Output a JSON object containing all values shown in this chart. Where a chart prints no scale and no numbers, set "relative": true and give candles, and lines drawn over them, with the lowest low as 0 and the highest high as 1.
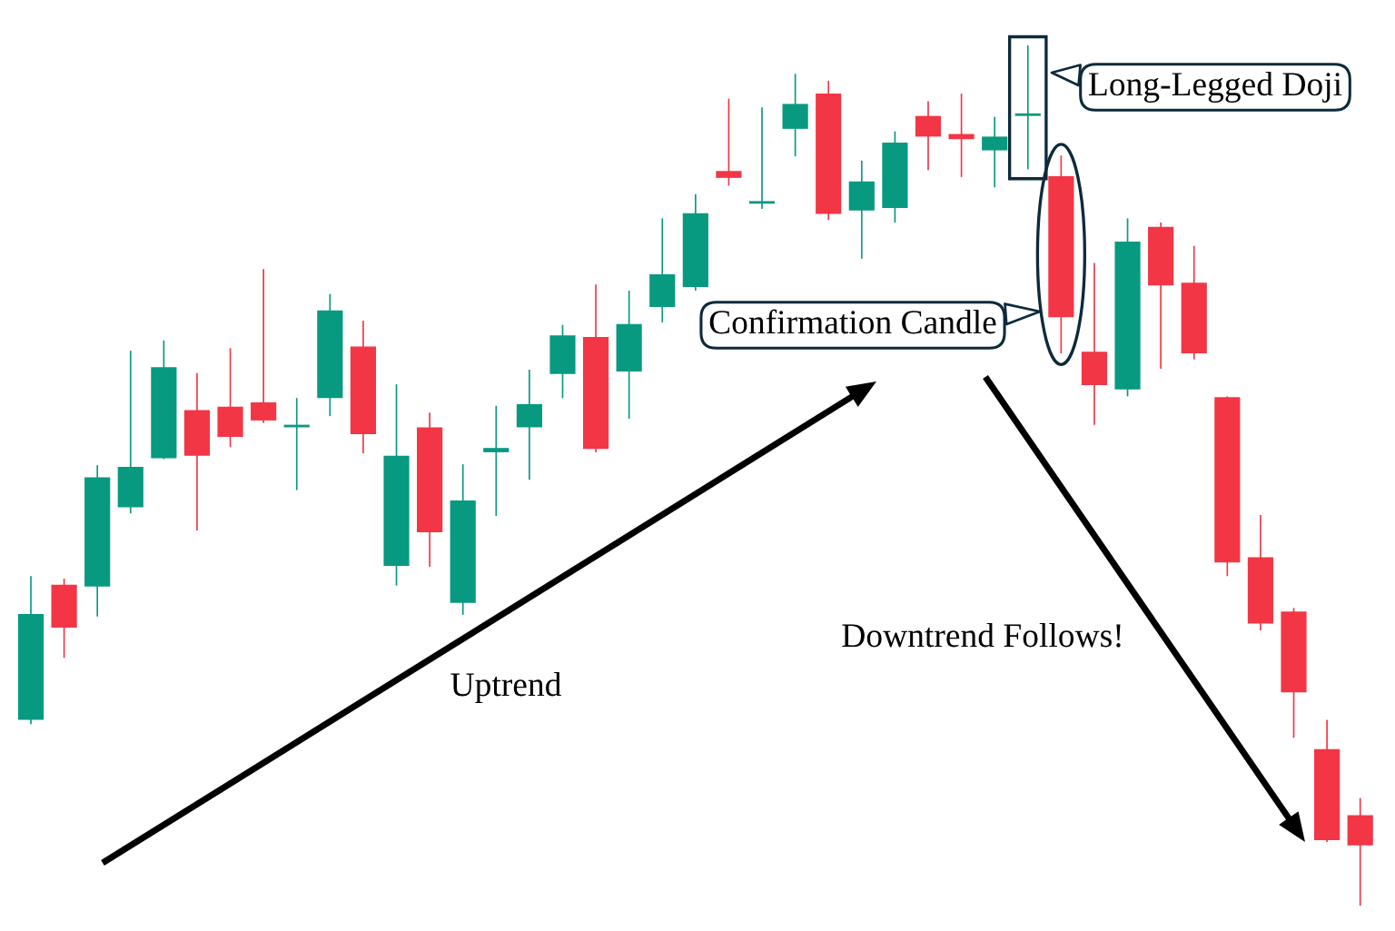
{
  "chart_data": {
    "type": "candlestick",
    "relative": true,
    "categories": [
      null,
      null,
      null,
      null,
      null,
      null,
      null,
      null,
      null,
      null,
      null,
      null,
      null,
      null,
      null,
      null,
      null,
      null,
      null,
      null,
      null,
      null,
      null,
      null,
      null,
      null,
      null,
      null,
      null,
      null,
      null,
      null,
      null,
      null,
      null,
      null,
      null,
      null,
      null,
      null,
      null
    ],
    "ohlc": [
      [
        0.216,
        0.383,
        0.211,
        0.339
      ],
      [
        0.373,
        0.38,
        0.288,
        0.323
      ],
      [
        0.371,
        0.512,
        0.336,
        0.498
      ],
      [
        0.463,
        0.645,
        0.456,
        0.51
      ],
      [
        0.52,
        0.657,
        0.519,
        0.626
      ],
      [
        0.576,
        0.619,
        0.436,
        0.523
      ],
      [
        0.58,
        0.648,
        0.533,
        0.545
      ],
      [
        0.585,
        0.74,
        0.561,
        0.564
      ],
      [
        0.556,
        0.59,
        0.483,
        0.559
      ],
      [
        0.59,
        0.711,
        0.569,
        0.692
      ],
      [
        0.65,
        0.68,
        0.526,
        0.548
      ],
      [
        0.395,
        0.606,
        0.372,
        0.523
      ],
      [
        0.556,
        0.573,
        0.394,
        0.434
      ],
      [
        0.352,
        0.513,
        0.338,
        0.471
      ],
      [
        0.527,
        0.581,
        0.453,
        0.532
      ],
      [
        0.556,
        0.623,
        0.495,
        0.583
      ],
      [
        0.618,
        0.675,
        0.59,
        0.663
      ],
      [
        0.661,
        0.722,
        0.527,
        0.531
      ],
      [
        0.621,
        0.715,
        0.566,
        0.676
      ],
      [
        0.696,
        0.799,
        0.678,
        0.734
      ],
      [
        0.719,
        0.827,
        0.715,
        0.805
      ],
      [
        0.854,
        0.938,
        0.837,
        0.846
      ],
      [
        0.816,
        0.928,
        0.81,
        0.819
      ],
      [
        0.903,
        0.967,
        0.871,
        0.932
      ],
      [
        0.944,
        0.959,
        0.797,
        0.804
      ],
      [
        0.808,
        0.866,
        0.752,
        0.842
      ],
      [
        0.811,
        0.9,
        0.794,
        0.887
      ],
      [
        0.918,
        0.935,
        0.855,
        0.894
      ],
      [
        0.897,
        0.944,
        0.847,
        0.891
      ],
      [
        0.878,
        0.917,
        0.835,
        0.894
      ],
      [
        0.918,
        1,
        0.856,
        0.919
      ],
      [
        0.848,
        0.872,
        0.642,
        0.684
      ],
      [
        0.644,
        0.747,
        0.559,
        0.605
      ],
      [
        0.6,
        0.799,
        0.592,
        0.772
      ],
      [
        0.789,
        0.794,
        0.624,
        0.721
      ],
      [
        0.724,
        0.767,
        0.635,
        0.642
      ],
      [
        0.591,
        0.592,
        0.383,
        0.399
      ],
      [
        0.405,
        0.454,
        0.32,
        0.328
      ],
      [
        0.342,
        0.346,
        0.195,
        0.248
      ],
      [
        0.182,
        0.216,
        0.074,
        0.076
      ],
      [
        0.105,
        0.125,
        0,
        0.07
      ]
    ],
    "colors": [
      "#089981",
      "#f23645",
      "#089981",
      "#089981",
      "#089981",
      "#f23645",
      "#f23645",
      "#f23645",
      "#089981",
      "#089981",
      "#f23645",
      "#089981",
      "#f23645",
      "#089981",
      "#089981",
      "#089981",
      "#089981",
      "#f23645",
      "#089981",
      "#089981",
      "#089981",
      "#f23645",
      "#089981",
      "#089981",
      "#f23645",
      "#089981",
      "#089981",
      "#f23645",
      "#f23645",
      "#089981",
      "#089981",
      "#f23645",
      "#f23645",
      "#089981",
      "#f23645",
      "#f23645",
      "#f23645",
      "#f23645",
      "#f23645",
      "#f23645",
      "#f23645"
    ],
    "annotations": [
      "Long-Legged Doji",
      "Confirmation Candle",
      "Uptrend",
      "Downtrend Follows!"
    ]
  }
}
